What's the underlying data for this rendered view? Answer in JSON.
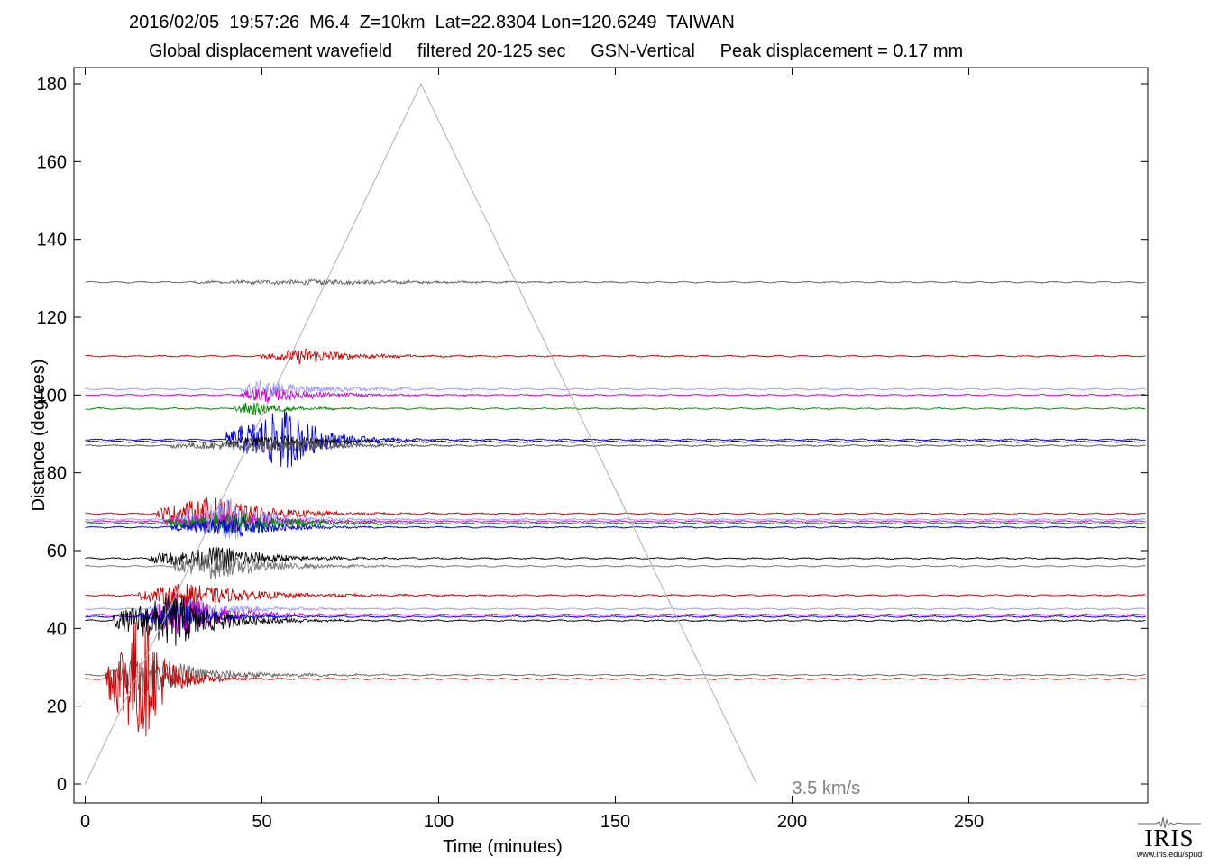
{
  "header": {
    "line1": "2016/02/05  19:57:26  M6.4  Z=10km  Lat=22.8304 Lon=120.6249  TAIWAN",
    "line2": "Global displacement wavefield     filtered 20-125 sec     GSN-Vertical     Peak displacement = 0.17 mm"
  },
  "logo": {
    "brand": "IRIS",
    "url": "www.iris.edu/spud"
  },
  "chart_data": {
    "type": "line",
    "title": "",
    "xlabel": "Time (minutes)",
    "ylabel": "Distance (degrees)",
    "xlim": [
      0,
      300
    ],
    "ylim": [
      -5,
      185
    ],
    "xticks": [
      0,
      50,
      100,
      150,
      200,
      250
    ],
    "yticks": [
      0,
      20,
      40,
      60,
      80,
      100,
      120,
      140,
      160,
      180
    ],
    "grid": false,
    "reference_line": {
      "label": "3.5 km/s",
      "points": [
        [
          0,
          0
        ],
        [
          95,
          180
        ],
        [
          190,
          0
        ]
      ],
      "color": "#aaaaaa"
    },
    "traces": [
      {
        "distance": 129,
        "color": "#606060",
        "onset": 30,
        "peak": 70,
        "amp": 0.6,
        "decay": 25
      },
      {
        "distance": 110,
        "color": "#cc0000",
        "onset": 50,
        "peak": 62,
        "amp": 2.2,
        "decay": 12
      },
      {
        "distance": 101.5,
        "color": "#9999ff",
        "onset": 44,
        "peak": 50,
        "amp": 2.6,
        "decay": 14
      },
      {
        "distance": 100,
        "color": "#cc00cc",
        "onset": 44,
        "peak": 50,
        "amp": 2.2,
        "decay": 14
      },
      {
        "distance": 96.5,
        "color": "#008800",
        "onset": 42,
        "peak": 47,
        "amp": 2.0,
        "decay": 8
      },
      {
        "distance": 88.5,
        "color": "#0000dd",
        "onset": 40,
        "peak": 57,
        "amp": 9.0,
        "decay": 9
      },
      {
        "distance": 88,
        "color": "#000000",
        "onset": 40,
        "peak": 55,
        "amp": 2.0,
        "decay": 12
      },
      {
        "distance": 87,
        "color": "#555555",
        "onset": 24,
        "peak": 62,
        "amp": 1.8,
        "decay": 12
      },
      {
        "distance": 69.5,
        "color": "#cc0000",
        "onset": 20,
        "peak": 36,
        "amp": 5.0,
        "decay": 14
      },
      {
        "distance": 68,
        "color": "#9999ff",
        "onset": 24,
        "peak": 42,
        "amp": 6.0,
        "decay": 10
      },
      {
        "distance": 67.5,
        "color": "#cc00cc",
        "onset": 22,
        "peak": 42,
        "amp": 3.0,
        "decay": 12
      },
      {
        "distance": 67,
        "color": "#008800",
        "onset": 22,
        "peak": 45,
        "amp": 3.0,
        "decay": 14
      },
      {
        "distance": 66,
        "color": "#0000dd",
        "onset": 24,
        "peak": 44,
        "amp": 3.0,
        "decay": 10
      },
      {
        "distance": 58,
        "color": "#000000",
        "onset": 18,
        "peak": 40,
        "amp": 3.5,
        "decay": 12
      },
      {
        "distance": 56,
        "color": "#777777",
        "onset": 25,
        "peak": 36,
        "amp": 4.0,
        "decay": 14
      },
      {
        "distance": 48.5,
        "color": "#cc0000",
        "onset": 15,
        "peak": 28,
        "amp": 3.5,
        "decay": 18
      },
      {
        "distance": 45,
        "color": "#9999ff",
        "onset": 18,
        "peak": 30,
        "amp": 3.0,
        "decay": 12
      },
      {
        "distance": 43.5,
        "color": "#cc00cc",
        "onset": 18,
        "peak": 28,
        "amp": 7.0,
        "decay": 10
      },
      {
        "distance": 43,
        "color": "#0000dd",
        "onset": 15,
        "peak": 26,
        "amp": 4.0,
        "decay": 10
      },
      {
        "distance": 42,
        "color": "#000000",
        "onset": 8,
        "peak": 26,
        "amp": 8.0,
        "decay": 11
      },
      {
        "distance": 28,
        "color": "#666666",
        "onset": 6,
        "peak": 18,
        "amp": 6.0,
        "decay": 14
      },
      {
        "distance": 27,
        "color": "#cc0000",
        "onset": 6,
        "peak": 16,
        "amp": 20.0,
        "decay": 6
      }
    ]
  }
}
